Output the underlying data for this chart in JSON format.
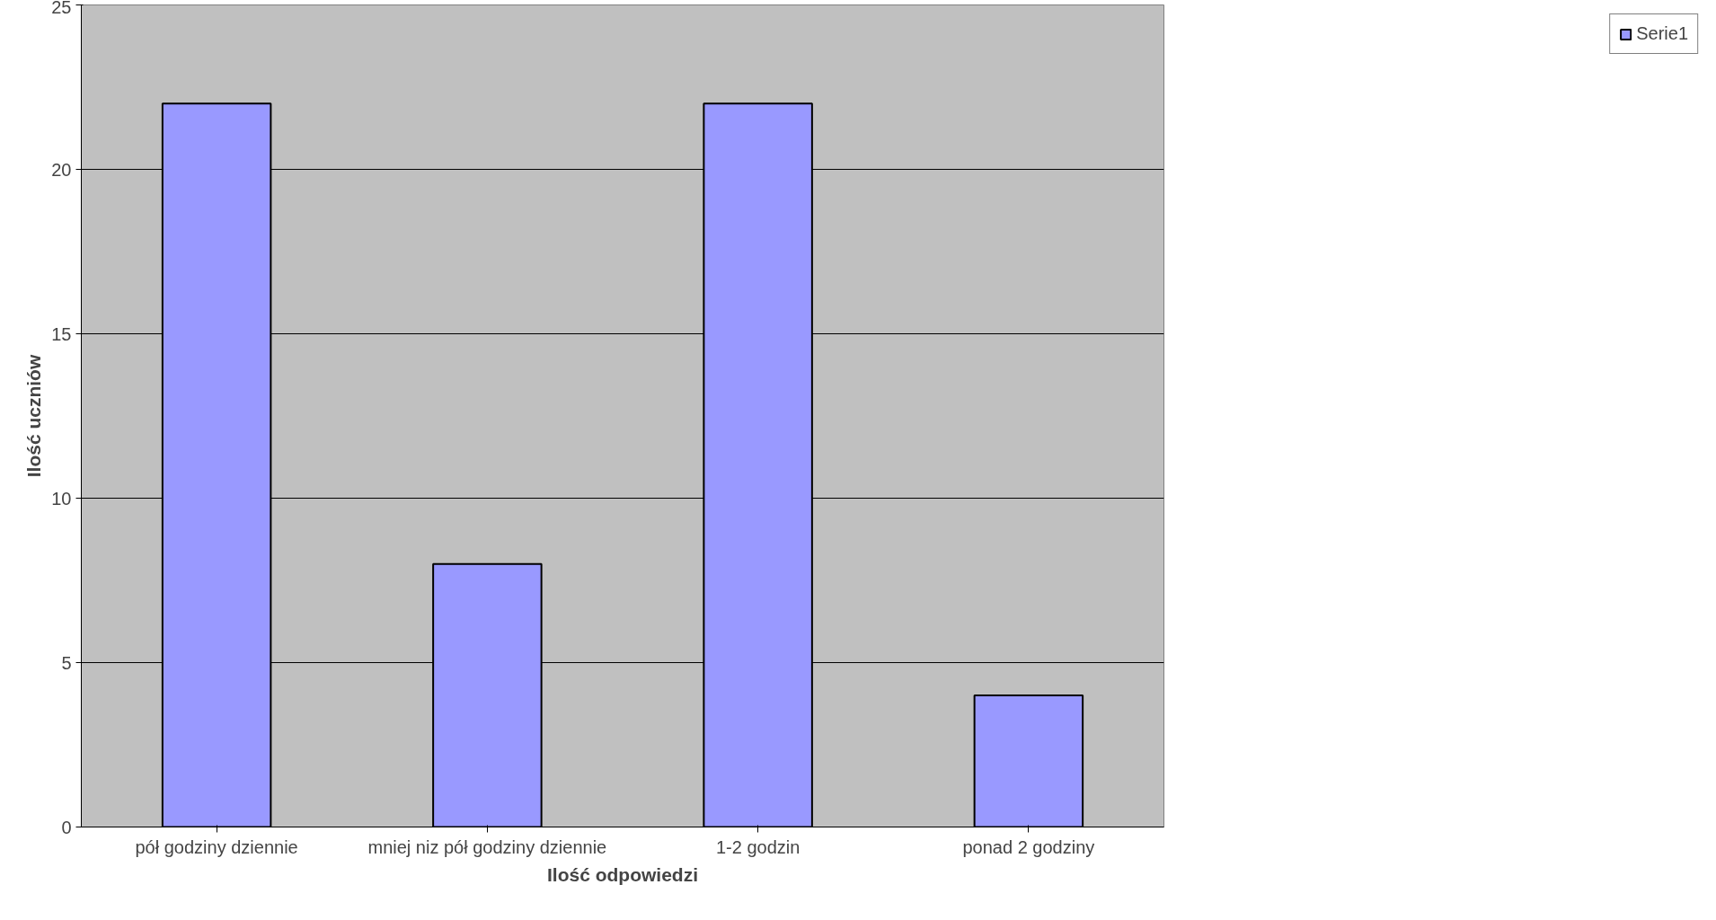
{
  "chart_data": {
    "type": "bar",
    "categories": [
      "pół godziny dziennie",
      "mniej niz pół godziny dziennie",
      "1-2 godzin",
      "ponad 2 godziny"
    ],
    "series": [
      {
        "name": "Serie1",
        "color": "#9999ff",
        "values": [
          22,
          8,
          22,
          4
        ]
      }
    ],
    "xlabel": "Ilość odpowiedzi",
    "ylabel": "Ilość uczniów",
    "ylim": [
      0,
      25
    ],
    "yticks": [
      0,
      5,
      10,
      15,
      20,
      25
    ],
    "grid": "y",
    "legend": "right"
  }
}
